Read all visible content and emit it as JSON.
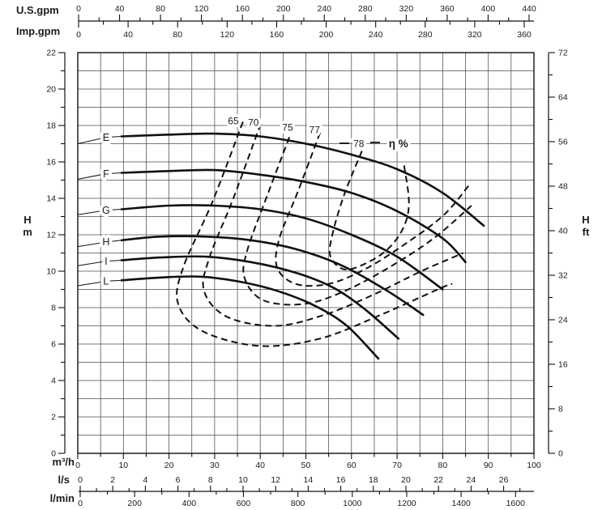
{
  "chart_data": {
    "type": "line",
    "axes": {
      "top_us": {
        "label": "U.S.gpm",
        "ticks": [
          0,
          40,
          80,
          120,
          160,
          200,
          240,
          280,
          320,
          360,
          400,
          440
        ],
        "minor_step": 20,
        "range": [
          0,
          445
        ]
      },
      "top_imp": {
        "label": "Imp.gpm",
        "ticks": [
          0,
          40,
          80,
          120,
          160,
          200,
          240,
          280,
          320,
          360
        ],
        "minor_step": 20,
        "range": [
          0,
          368
        ]
      },
      "left_m": {
        "label_line1": "H",
        "label_line2": "m",
        "ticks": [
          0,
          2,
          4,
          6,
          8,
          10,
          12,
          14,
          16,
          18,
          20,
          22
        ],
        "minor_step": 1,
        "range": [
          0,
          22
        ]
      },
      "right_ft": {
        "label_line1": "H",
        "label_line2": "ft",
        "ticks": [
          0,
          8,
          16,
          24,
          32,
          40,
          48,
          56,
          64,
          72
        ],
        "minor_step": 4,
        "range": [
          0,
          72
        ]
      },
      "bottom_m3h": {
        "label": "m³/h",
        "ticks": [
          0,
          10,
          20,
          30,
          40,
          50,
          60,
          70,
          80,
          90,
          100
        ],
        "minor_step": 5,
        "range": [
          0,
          100
        ]
      },
      "bottom_ls": {
        "label": "l/s",
        "ticks": [
          0,
          2,
          4,
          6,
          8,
          10,
          12,
          14,
          16,
          18,
          20,
          22,
          24,
          26
        ],
        "minor_step": 1,
        "range": [
          0,
          27.8
        ]
      },
      "bottom_lmin": {
        "label": "l/min",
        "ticks": [
          0,
          200,
          400,
          600,
          800,
          1000,
          1200,
          1400,
          1600
        ],
        "minor_step": 100,
        "range": [
          0,
          1672
        ]
      }
    },
    "grid": {
      "x_step": 5,
      "y_step": 1
    },
    "pump_curves": [
      {
        "name": "E",
        "label_q": 6.2,
        "label_h": 17.35,
        "leader_h": 17.0,
        "points": [
          [
            9.6,
            17.4
          ],
          [
            20,
            17.5
          ],
          [
            30,
            17.55
          ],
          [
            40,
            17.4
          ],
          [
            50,
            17.0
          ],
          [
            60,
            16.4
          ],
          [
            70,
            15.6
          ],
          [
            80,
            14.3
          ],
          [
            89,
            12.5
          ]
        ]
      },
      {
        "name": "F",
        "label_q": 6.2,
        "label_h": 15.35,
        "leader_h": 15.05,
        "points": [
          [
            9.6,
            15.4
          ],
          [
            20,
            15.5
          ],
          [
            30,
            15.55
          ],
          [
            40,
            15.3
          ],
          [
            50,
            14.9
          ],
          [
            60,
            14.3
          ],
          [
            70,
            13.3
          ],
          [
            80,
            11.8
          ],
          [
            85,
            10.5
          ]
        ]
      },
      {
        "name": "G",
        "label_q": 6.2,
        "label_h": 13.35,
        "leader_h": 13.1,
        "points": [
          [
            9.6,
            13.4
          ],
          [
            20,
            13.6
          ],
          [
            30,
            13.6
          ],
          [
            40,
            13.4
          ],
          [
            50,
            12.9
          ],
          [
            60,
            12.0
          ],
          [
            70,
            10.8
          ],
          [
            80,
            9.0
          ]
        ]
      },
      {
        "name": "H",
        "label_q": 6.2,
        "label_h": 11.6,
        "leader_h": 11.35,
        "points": [
          [
            9.6,
            11.7
          ],
          [
            18,
            11.9
          ],
          [
            28,
            11.9
          ],
          [
            38,
            11.7
          ],
          [
            48,
            11.2
          ],
          [
            58,
            10.3
          ],
          [
            68,
            8.9
          ],
          [
            75.7,
            7.6
          ]
        ]
      },
      {
        "name": "I",
        "label_q": 6.2,
        "label_h": 10.55,
        "leader_h": 10.3,
        "points": [
          [
            9.6,
            10.6
          ],
          [
            18,
            10.75
          ],
          [
            28,
            10.8
          ],
          [
            38,
            10.5
          ],
          [
            48,
            9.9
          ],
          [
            56,
            9.1
          ],
          [
            63,
            7.9
          ],
          [
            70.3,
            6.3
          ]
        ]
      },
      {
        "name": "L",
        "label_q": 6.2,
        "label_h": 9.45,
        "leader_h": 9.2,
        "points": [
          [
            9.6,
            9.5
          ],
          [
            18,
            9.65
          ],
          [
            27,
            9.7
          ],
          [
            36,
            9.4
          ],
          [
            44,
            8.9
          ],
          [
            52,
            8.1
          ],
          [
            59,
            7.0
          ],
          [
            65.9,
            5.2
          ]
        ]
      }
    ],
    "efficiency_curves": {
      "family_label": "η %",
      "family_label_pos": [
        70.3,
        17.0
      ],
      "curves": [
        {
          "value": "65",
          "label_pos": [
            34.1,
            18.25
          ],
          "points": [
            [
              36.2,
              18.2
            ],
            [
              29.5,
              13.8
            ],
            [
              23.1,
              10.2
            ],
            [
              22.0,
              8.2
            ],
            [
              27.4,
              6.7
            ],
            [
              39.8,
              5.9
            ],
            [
              53.1,
              6.3
            ],
            [
              66.4,
              7.6
            ],
            [
              79.8,
              9.1
            ],
            [
              82.1,
              9.3
            ]
          ]
        },
        {
          "value": "70",
          "label_pos": [
            38.5,
            18.15
          ],
          "points": [
            [
              40.1,
              18.1
            ],
            [
              34.1,
              14.0
            ],
            [
              28.8,
              10.7
            ],
            [
              27.7,
              8.9
            ],
            [
              32.7,
              7.5
            ],
            [
              43.3,
              7.0
            ],
            [
              54.0,
              7.6
            ],
            [
              64.7,
              8.7
            ],
            [
              75.3,
              10.0
            ],
            [
              84.5,
              11.0
            ]
          ]
        },
        {
          "value": "75",
          "label_pos": [
            46.0,
            17.9
          ],
          "points": [
            [
              47.2,
              17.9
            ],
            [
              41.6,
              14.2
            ],
            [
              37.1,
              11.1
            ],
            [
              36.6,
              9.6
            ],
            [
              40.7,
              8.4
            ],
            [
              49.6,
              8.2
            ],
            [
              58.4,
              8.9
            ],
            [
              68.2,
              10.2
            ],
            [
              78.0,
              11.8
            ],
            [
              86.3,
              13.6
            ]
          ]
        },
        {
          "value": "77",
          "label_pos": [
            51.9,
            17.75
          ],
          "points": [
            [
              53.1,
              17.6
            ],
            [
              48.3,
              14.4
            ],
            [
              44.2,
              11.8
            ],
            [
              43.7,
              10.2
            ],
            [
              47.8,
              9.3
            ],
            [
              54.9,
              9.3
            ],
            [
              62.9,
              10.1
            ],
            [
              71.8,
              11.5
            ],
            [
              80.3,
              13.1
            ],
            [
              86.0,
              14.8
            ]
          ]
        },
        {
          "value": "78",
          "label_pos": [
            61.6,
            17.0
          ],
          "points": [
            [
              62.3,
              16.6
            ],
            [
              58.4,
              14.2
            ],
            [
              55.8,
              12.0
            ],
            [
              55.4,
              10.8
            ],
            [
              58.4,
              10.1
            ],
            [
              62.9,
              10.4
            ],
            [
              67.9,
              11.2
            ],
            [
              71.4,
              12.4
            ],
            [
              72.6,
              13.8
            ],
            [
              71.4,
              16.0
            ]
          ]
        }
      ]
    },
    "colors": {
      "ink": "#111111",
      "grid": "#4a4a4a",
      "text": "#1c1c1c"
    }
  }
}
